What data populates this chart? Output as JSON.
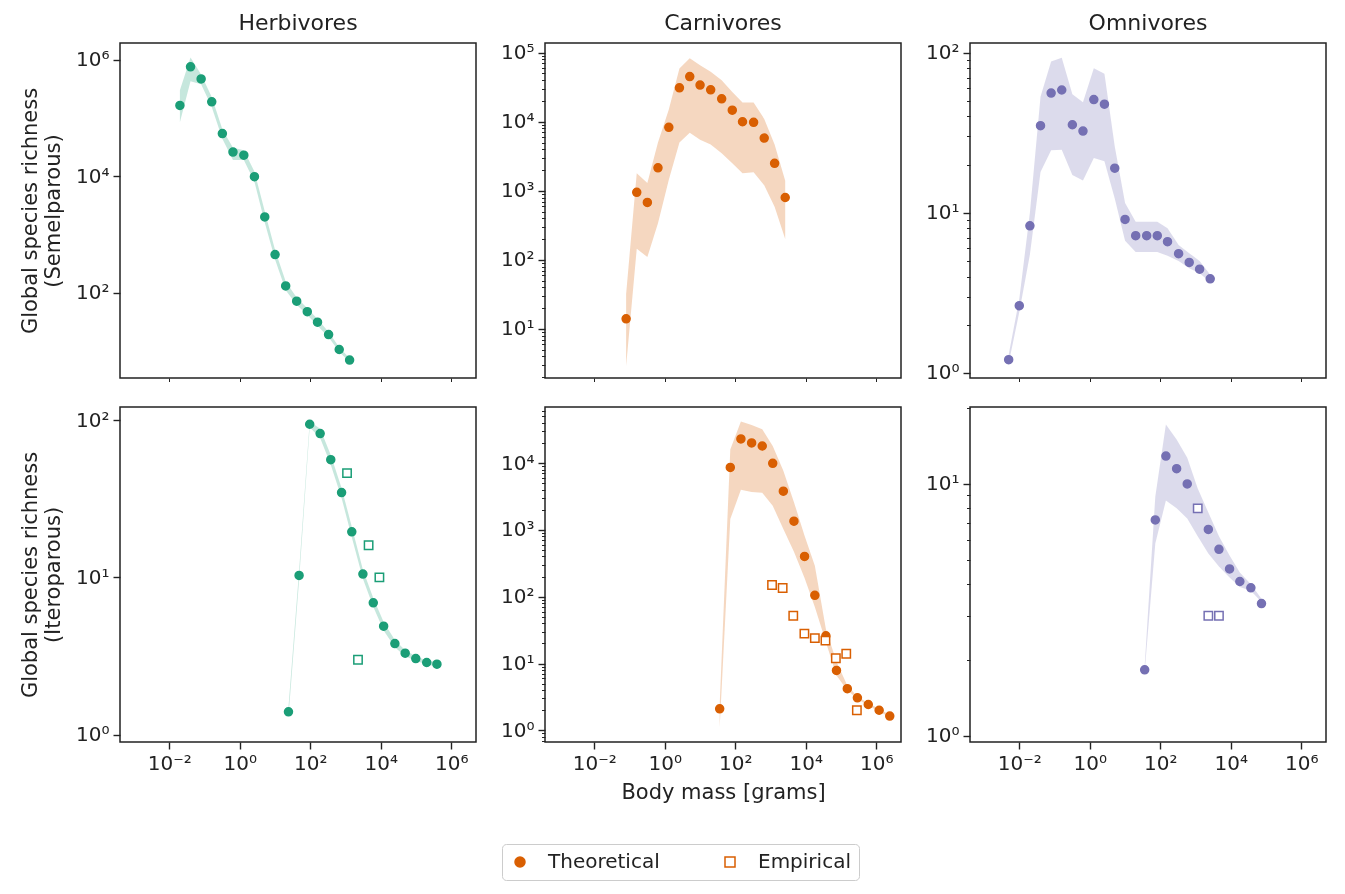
{
  "chart_data": [
    {
      "type": "scatter",
      "title": "Herbivores",
      "ylabel": "Global species richness\n(Semelparous)",
      "log": "xy",
      "tick_labels": "y",
      "xlim": [
        0.0004,
        5000000
      ],
      "ylim": [
        3.4,
        1950000
      ],
      "xticks": [
        {
          "value": 0.01,
          "label": null
        },
        {
          "value": 1,
          "label": null
        },
        {
          "value": 100,
          "label": null
        },
        {
          "value": 10000,
          "label": null
        },
        {
          "value": 1000000,
          "label": null
        }
      ],
      "yticks": [
        {
          "value": 100,
          "label": "10²"
        },
        {
          "value": 10000,
          "label": "10⁴"
        },
        {
          "value": 1000000,
          "label": "10⁶"
        }
      ],
      "series": [
        {
          "color": "#1b9e77",
          "marker": "circle",
          "x": [
            0.02,
            0.04,
            0.08,
            0.16,
            0.32,
            0.64,
            1.3,
            2.6,
            5.1,
            10,
            20,
            41,
            82,
            160,
            330,
            660,
            1300
          ],
          "values": [
            165000,
            760000,
            470000,
            190000,
            54000,
            26000,
            23000,
            9800,
            2000,
            450,
            130,
            71,
            47,
            31,
            19,
            10.5,
            6.9
          ],
          "lower": [
            85000,
            430000,
            380000,
            155000,
            44000,
            19000,
            19000,
            8000,
            1600,
            370,
            110,
            62,
            41,
            27,
            17,
            9.6,
            6.4
          ],
          "upper": [
            300000,
            1100000,
            560000,
            230000,
            64000,
            31000,
            28000,
            12000,
            2500,
            540,
            155,
            82,
            54,
            35,
            21,
            11.5,
            7.4
          ]
        }
      ]
    },
    {
      "type": "scatter",
      "title": "Carnivores",
      "log": "xy",
      "tick_labels": "y",
      "xlim": [
        0.0004,
        5000000
      ],
      "ylim": [
        1.95,
        138000
      ],
      "xticks": [
        {
          "value": 0.01,
          "label": null
        },
        {
          "value": 1,
          "label": null
        },
        {
          "value": 100,
          "label": null
        },
        {
          "value": 10000,
          "label": null
        },
        {
          "value": 1000000,
          "label": null
        }
      ],
      "yticks": [
        {
          "value": 2,
          "label": null
        },
        {
          "value": 3,
          "label": null
        },
        {
          "value": 4,
          "label": null
        },
        {
          "value": 5,
          "label": null
        },
        {
          "value": 6,
          "label": null
        },
        {
          "value": 7,
          "label": null
        },
        {
          "value": 8,
          "label": null
        },
        {
          "value": 9,
          "label": null
        },
        {
          "value": 10,
          "label": "10¹"
        },
        {
          "value": 20,
          "label": null
        },
        {
          "value": 30,
          "label": null
        },
        {
          "value": 40,
          "label": null
        },
        {
          "value": 50,
          "label": null
        },
        {
          "value": 60,
          "label": null
        },
        {
          "value": 70,
          "label": null
        },
        {
          "value": 80,
          "label": null
        },
        {
          "value": 90,
          "label": null
        },
        {
          "value": 100,
          "label": "10²"
        },
        {
          "value": 200,
          "label": null
        },
        {
          "value": 300,
          "label": null
        },
        {
          "value": 400,
          "label": null
        },
        {
          "value": 500,
          "label": null
        },
        {
          "value": 600,
          "label": null
        },
        {
          "value": 700,
          "label": null
        },
        {
          "value": 800,
          "label": null
        },
        {
          "value": 900,
          "label": null
        },
        {
          "value": 1000,
          "label": "10³"
        },
        {
          "value": 2000,
          "label": null
        },
        {
          "value": 3000,
          "label": null
        },
        {
          "value": 4000,
          "label": null
        },
        {
          "value": 5000,
          "label": null
        },
        {
          "value": 6000,
          "label": null
        },
        {
          "value": 7000,
          "label": null
        },
        {
          "value": 8000,
          "label": null
        },
        {
          "value": 9000,
          "label": null
        },
        {
          "value": 10000,
          "label": "10⁴"
        },
        {
          "value": 20000,
          "label": null
        },
        {
          "value": 30000,
          "label": null
        },
        {
          "value": 40000,
          "label": null
        },
        {
          "value": 50000,
          "label": null
        },
        {
          "value": 60000,
          "label": null
        },
        {
          "value": 70000,
          "label": null
        },
        {
          "value": 80000,
          "label": null
        },
        {
          "value": 90000,
          "label": null
        },
        {
          "value": 100000,
          "label": "10⁵"
        }
      ],
      "series": [
        {
          "color": "#d95f02",
          "marker": "circle",
          "x": [
            0.08,
            0.16,
            0.32,
            0.64,
            1.3,
            2.6,
            5.1,
            10,
            20,
            41,
            82,
            160,
            330,
            660,
            1300,
            2600
          ],
          "values": [
            14,
            950,
            680,
            2150,
            8300,
            31000,
            45000,
            34000,
            29000,
            21500,
            14700,
            10000,
            9800,
            5800,
            2500,
            800
          ],
          "lower": [
            2.9,
            145,
            110,
            340,
            1450,
            5000,
            6900,
            5500,
            4700,
            3500,
            2500,
            1800,
            1850,
            1200,
            590,
            200
          ],
          "upper": [
            32,
            1800,
            1300,
            5000,
            15000,
            59000,
            83000,
            66000,
            53000,
            40000,
            27000,
            19000,
            19000,
            11000,
            4700,
            1400
          ]
        }
      ]
    },
    {
      "type": "scatter",
      "title": "Omnivores",
      "log": "xy",
      "tick_labels": "y",
      "xlim": [
        0.0004,
        5000000
      ],
      "ylim": [
        0.93,
        115
      ],
      "xticks": [
        {
          "value": 0.01,
          "label": null
        },
        {
          "value": 1,
          "label": null
        },
        {
          "value": 100,
          "label": null
        },
        {
          "value": 10000,
          "label": null
        },
        {
          "value": 1000000,
          "label": null
        }
      ],
      "yticks": [
        {
          "value": 1,
          "label": "10⁰"
        },
        {
          "value": 2,
          "label": null
        },
        {
          "value": 3,
          "label": null
        },
        {
          "value": 4,
          "label": null
        },
        {
          "value": 5,
          "label": null
        },
        {
          "value": 6,
          "label": null
        },
        {
          "value": 7,
          "label": null
        },
        {
          "value": 8,
          "label": null
        },
        {
          "value": 9,
          "label": null
        },
        {
          "value": 10,
          "label": "10¹"
        },
        {
          "value": 20,
          "label": null
        },
        {
          "value": 30,
          "label": null
        },
        {
          "value": 40,
          "label": null
        },
        {
          "value": 50,
          "label": null
        },
        {
          "value": 60,
          "label": null
        },
        {
          "value": 70,
          "label": null
        },
        {
          "value": 80,
          "label": null
        },
        {
          "value": 90,
          "label": null
        },
        {
          "value": 100,
          "label": "10²"
        }
      ],
      "series": [
        {
          "color": "#7570b3",
          "marker": "circle",
          "x": [
            0.005,
            0.01,
            0.02,
            0.04,
            0.08,
            0.16,
            0.32,
            0.64,
            1.3,
            2.6,
            5.1,
            10,
            20,
            41,
            82,
            160,
            330,
            660,
            1300,
            2600
          ],
          "values": [
            1.21,
            2.63,
            8.3,
            35,
            56,
            58.5,
            35.5,
            32.4,
            51,
            47.7,
            19,
            9.1,
            7.2,
            7.2,
            7.2,
            6.6,
            5.56,
            4.9,
            4.45,
            3.87
          ],
          "lower": [
            1.15,
            2.4,
            5.5,
            18,
            24.6,
            24.8,
            17.2,
            15.9,
            22,
            21,
            12.3,
            6.7,
            5.7,
            5.7,
            5.7,
            5.4,
            5.0,
            4.5,
            4.2,
            3.7
          ],
          "upper": [
            1.3,
            2.9,
            10,
            53,
            88,
            93,
            55,
            49,
            80,
            74,
            26,
            11.5,
            8.8,
            8.8,
            8.8,
            8.0,
            6.3,
            5.6,
            5.0,
            4.1
          ]
        }
      ]
    },
    {
      "type": "scatter",
      "ylabel": "Global species richness\n(Iteroparous)",
      "log": "xy",
      "xlim": [
        0.0004,
        5000000
      ],
      "ylim": [
        0.9,
        121
      ],
      "xticks": [
        {
          "value": 0.01,
          "label": "10⁻²"
        },
        {
          "value": 1,
          "label": "10⁰"
        },
        {
          "value": 100,
          "label": "10²"
        },
        {
          "value": 10000,
          "label": "10⁴"
        },
        {
          "value": 1000000,
          "label": "10⁶"
        }
      ],
      "yticks": [
        {
          "value": 1,
          "label": "10⁰"
        },
        {
          "value": 10,
          "label": "10¹"
        },
        {
          "value": 100,
          "label": "10²"
        }
      ],
      "series": [
        {
          "color": "#1b9e77",
          "marker": "circle",
          "x": [
            24,
            48,
            96,
            190,
            380,
            770,
            1500,
            3100,
            6100,
            12000,
            25000,
            49000,
            98000,
            200000,
            390000
          ],
          "values": [
            1.4,
            10.3,
            94,
            82,
            56,
            34.6,
            19.5,
            10.5,
            6.9,
            4.9,
            3.8,
            3.3,
            3.05,
            2.88,
            2.81
          ],
          "lower": [
            1.3,
            9.6,
            90,
            77,
            52,
            32,
            18,
            9.8,
            6.5,
            4.6,
            3.6,
            3.15,
            2.95,
            2.8,
            2.72
          ],
          "upper": [
            1.5,
            11,
            98,
            88,
            60,
            37,
            21,
            11.2,
            7.4,
            5.2,
            4.0,
            3.45,
            3.15,
            2.97,
            2.9
          ]
        },
        {
          "color": "#1b9e77",
          "marker": "square",
          "x": [
            1100,
            4500,
            9100,
            2250
          ],
          "values": [
            46,
            16,
            10,
            3.0
          ]
        }
      ]
    },
    {
      "type": "scatter",
      "xlabel": "Body mass [grams]",
      "log": "xy",
      "legend": "bottom",
      "xlim": [
        0.0004,
        5000000
      ],
      "ylim": [
        0.67,
        69000
      ],
      "xticks": [
        {
          "value": 0.01,
          "label": "10⁻²"
        },
        {
          "value": 1,
          "label": "10⁰"
        },
        {
          "value": 100,
          "label": "10²"
        },
        {
          "value": 10000,
          "label": "10⁴"
        },
        {
          "value": 1000000,
          "label": "10⁶"
        }
      ],
      "yticks": [
        {
          "value": 0.7,
          "label": null
        },
        {
          "value": 0.8,
          "label": null
        },
        {
          "value": 0.9,
          "label": null
        },
        {
          "value": 1,
          "label": "10⁰"
        },
        {
          "value": 2,
          "label": null
        },
        {
          "value": 3,
          "label": null
        },
        {
          "value": 4,
          "label": null
        },
        {
          "value": 5,
          "label": null
        },
        {
          "value": 6,
          "label": null
        },
        {
          "value": 7,
          "label": null
        },
        {
          "value": 8,
          "label": null
        },
        {
          "value": 9,
          "label": null
        },
        {
          "value": 10,
          "label": "10¹"
        },
        {
          "value": 20,
          "label": null
        },
        {
          "value": 30,
          "label": null
        },
        {
          "value": 40,
          "label": null
        },
        {
          "value": 50,
          "label": null
        },
        {
          "value": 60,
          "label": null
        },
        {
          "value": 70,
          "label": null
        },
        {
          "value": 80,
          "label": null
        },
        {
          "value": 90,
          "label": null
        },
        {
          "value": 100,
          "label": "10²"
        },
        {
          "value": 200,
          "label": null
        },
        {
          "value": 300,
          "label": null
        },
        {
          "value": 400,
          "label": null
        },
        {
          "value": 500,
          "label": null
        },
        {
          "value": 600,
          "label": null
        },
        {
          "value": 700,
          "label": null
        },
        {
          "value": 800,
          "label": null
        },
        {
          "value": 900,
          "label": null
        },
        {
          "value": 1000,
          "label": "10³"
        },
        {
          "value": 2000,
          "label": null
        },
        {
          "value": 3000,
          "label": null
        },
        {
          "value": 4000,
          "label": null
        },
        {
          "value": 5000,
          "label": null
        },
        {
          "value": 6000,
          "label": null
        },
        {
          "value": 7000,
          "label": null
        },
        {
          "value": 8000,
          "label": null
        },
        {
          "value": 9000,
          "label": null
        },
        {
          "value": 10000,
          "label": "10⁴"
        },
        {
          "value": 20000,
          "label": null
        },
        {
          "value": 30000,
          "label": null
        },
        {
          "value": 40000,
          "label": null
        },
        {
          "value": 50000,
          "label": null
        },
        {
          "value": 60000,
          "label": null
        }
      ],
      "series": [
        {
          "name": "Theoretical",
          "color": "#d95f02",
          "marker": "circle",
          "x": [
            36,
            72,
            144,
            290,
            580,
            1150,
            2300,
            4600,
            9200,
            18000,
            37000,
            74000,
            150000,
            290000,
            590000,
            1200000,
            2400000
          ],
          "values": [
            2.1,
            8600,
            23000,
            20000,
            18000,
            9900,
            3800,
            1350,
            400,
            105,
            26,
            7.9,
            4.2,
            3.07,
            2.44,
            2.0,
            1.64
          ],
          "lower": [
            1.1,
            1450,
            4000,
            3700,
            3600,
            2300,
            1030,
            470,
            190,
            70,
            21,
            6.6,
            4.0,
            2.95,
            2.35,
            1.9,
            1.58
          ],
          "upper": [
            2.4,
            16000,
            42000,
            37000,
            32000,
            18000,
            7700,
            2600,
            820,
            290,
            33,
            10.6,
            4.7,
            3.2,
            2.55,
            2.1,
            1.7
          ]
        },
        {
          "name": "Empirical",
          "color": "#d95f02",
          "marker": "square",
          "x": [
            1100,
            2200,
            4400,
            9100,
            18000,
            36000,
            71000,
            140000,
            280000
          ],
          "values": [
            150,
            135,
            52,
            28,
            24,
            22,
            12,
            14,
            2.0
          ]
        }
      ]
    },
    {
      "type": "scatter",
      "log": "xy",
      "xlim": [
        0.0004,
        5000000
      ],
      "ylim": [
        0.946,
        20.2
      ],
      "xticks": [
        {
          "value": 0.01,
          "label": "10⁻²"
        },
        {
          "value": 1,
          "label": "10⁰"
        },
        {
          "value": 100,
          "label": "10²"
        },
        {
          "value": 10000,
          "label": "10⁴"
        },
        {
          "value": 1000000,
          "label": "10⁶"
        }
      ],
      "yticks": [
        {
          "value": 1,
          "label": "10⁰"
        },
        {
          "value": 2,
          "label": null
        },
        {
          "value": 3,
          "label": null
        },
        {
          "value": 4,
          "label": null
        },
        {
          "value": 5,
          "label": null
        },
        {
          "value": 6,
          "label": null
        },
        {
          "value": 7,
          "label": null
        },
        {
          "value": 8,
          "label": null
        },
        {
          "value": 9,
          "label": null
        },
        {
          "value": 10,
          "label": "10¹"
        },
        {
          "value": 20,
          "label": null
        }
      ],
      "series": [
        {
          "color": "#7570b3",
          "marker": "circle",
          "x": [
            36,
            72,
            144,
            290,
            580,
            1150,
            2300,
            4600,
            9200,
            18000,
            37000,
            74000
          ],
          "values": [
            1.83,
            7.2,
            12.9,
            11.5,
            10.0,
            null,
            6.6,
            5.5,
            4.6,
            4.1,
            3.87,
            3.35
          ],
          "lower": [
            1.8,
            5.8,
            8.6,
            8.0,
            7.3,
            6.2,
            5.3,
            4.7,
            4.25,
            3.9,
            3.77,
            3.4
          ],
          "upper": [
            1.9,
            8.9,
            17.2,
            15,
            12.7,
            9.6,
            7.7,
            6.2,
            5.2,
            4.45,
            4.0,
            3.5
          ]
        },
        {
          "color": "#7570b3",
          "marker": "square",
          "x": [
            1150,
            2300,
            4600
          ],
          "values": [
            8.0,
            3.0,
            3.0
          ]
        }
      ]
    }
  ]
}
